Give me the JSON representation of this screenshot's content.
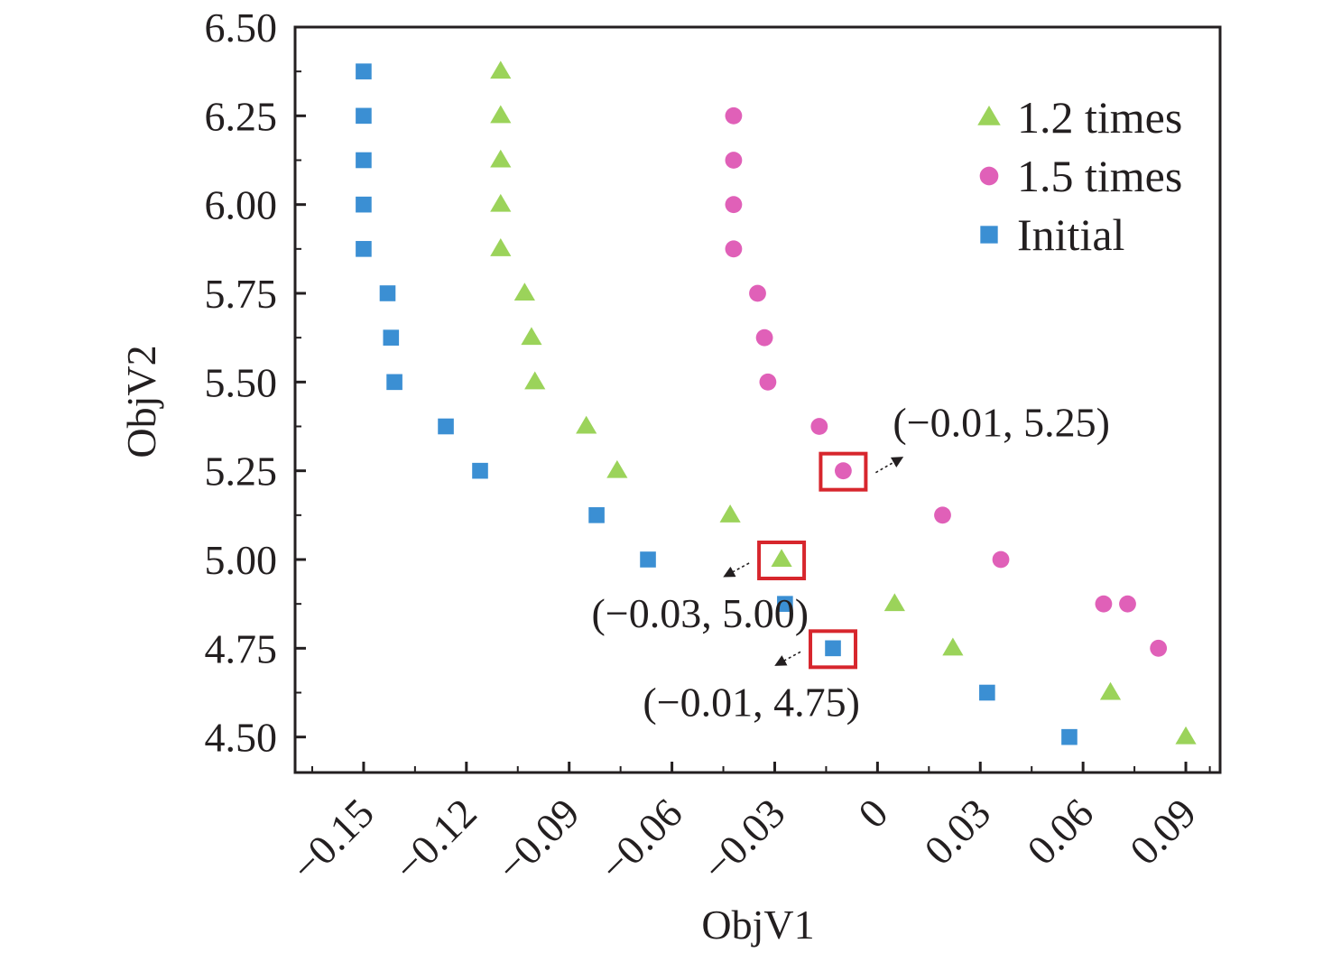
{
  "chart_data": {
    "type": "scatter",
    "xlabel": "ObjV1",
    "ylabel": "ObjV2",
    "xlim": [
      -0.17,
      0.1
    ],
    "ylim": [
      4.4,
      6.5
    ],
    "x_ticks": [
      -0.15,
      -0.12,
      -0.09,
      -0.06,
      -0.03,
      0,
      0.03,
      0.06,
      0.09
    ],
    "x_tick_labels": [
      "−0.15",
      "−0.12",
      "−0.09",
      "−0.06",
      "−0.03",
      "0",
      "0.03",
      "0.06",
      "0.09"
    ],
    "y_ticks": [
      4.5,
      4.75,
      5.0,
      5.25,
      5.5,
      5.75,
      6.0,
      6.25,
      6.5
    ],
    "y_tick_labels": [
      "4.50",
      "4.75",
      "5.00",
      "5.25",
      "5.50",
      "5.75",
      "6.00",
      "6.25",
      "6.50"
    ],
    "legend_position": "top-right",
    "series": [
      {
        "name": "1.2 times",
        "marker": "triangle",
        "color": "#9bd35a",
        "points": [
          [
            -0.11,
            6.375
          ],
          [
            -0.11,
            6.25
          ],
          [
            -0.11,
            6.125
          ],
          [
            -0.11,
            6.0
          ],
          [
            -0.11,
            5.875
          ],
          [
            -0.103,
            5.75
          ],
          [
            -0.101,
            5.625
          ],
          [
            -0.1,
            5.5
          ],
          [
            -0.085,
            5.375
          ],
          [
            -0.076,
            5.25
          ],
          [
            -0.043,
            5.125
          ],
          [
            -0.028,
            5.0
          ],
          [
            0.005,
            4.875
          ],
          [
            0.022,
            4.75
          ],
          [
            0.068,
            4.625
          ],
          [
            0.09,
            4.5
          ]
        ]
      },
      {
        "name": "1.5 times",
        "marker": "circle",
        "color": "#e060b8",
        "points": [
          [
            -0.042,
            6.25
          ],
          [
            -0.042,
            6.125
          ],
          [
            -0.042,
            6.0
          ],
          [
            -0.042,
            5.875
          ],
          [
            -0.035,
            5.75
          ],
          [
            -0.033,
            5.625
          ],
          [
            -0.032,
            5.5
          ],
          [
            -0.017,
            5.375
          ],
          [
            -0.01,
            5.25
          ],
          [
            0.019,
            5.125
          ],
          [
            0.036,
            5.0
          ],
          [
            0.066,
            4.875
          ],
          [
            0.073,
            4.875
          ],
          [
            0.082,
            4.75
          ]
        ]
      },
      {
        "name": "Initial",
        "marker": "square",
        "color": "#3b8fd3",
        "points": [
          [
            -0.15,
            6.375
          ],
          [
            -0.15,
            6.25
          ],
          [
            -0.15,
            6.125
          ],
          [
            -0.15,
            6.0
          ],
          [
            -0.15,
            5.875
          ],
          [
            -0.143,
            5.75
          ],
          [
            -0.142,
            5.625
          ],
          [
            -0.141,
            5.5
          ],
          [
            -0.126,
            5.375
          ],
          [
            -0.116,
            5.25
          ],
          [
            -0.082,
            5.125
          ],
          [
            -0.067,
            5.0
          ],
          [
            -0.027,
            4.875
          ],
          [
            -0.013,
            4.75
          ],
          [
            0.032,
            4.625
          ],
          [
            0.056,
            4.5
          ]
        ]
      }
    ],
    "annotations": [
      {
        "label": "(−0.01, 5.25)",
        "series": "1.5 times",
        "point": [
          -0.01,
          5.25
        ],
        "text_side": "upper-right"
      },
      {
        "label": "(−0.03, 5.00)",
        "series": "1.2 times",
        "point": [
          -0.028,
          5.0
        ],
        "text_side": "lower-left"
      },
      {
        "label": "(−0.01, 4.75)",
        "series": "Initial",
        "point": [
          -0.013,
          4.75
        ],
        "text_side": "lower-left"
      }
    ],
    "highlight_color": "#d7262d"
  }
}
